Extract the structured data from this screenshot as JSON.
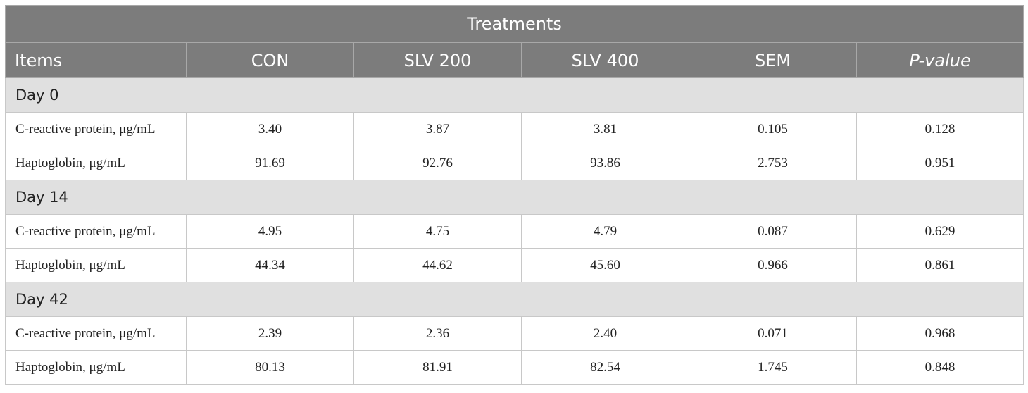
{
  "table": {
    "group_header": "Treatments",
    "columns": [
      "Items",
      "CON",
      "SLV 200",
      "SLV 400",
      "SEM",
      "P-value"
    ],
    "sections": [
      {
        "label": "Day 0",
        "rows": [
          [
            "C-reactive protein, μg/mL",
            "3.40",
            "3.87",
            "3.81",
            "0.105",
            "0.128"
          ],
          [
            "Haptoglobin, μg/mL",
            "91.69",
            "92.76",
            "93.86",
            "2.753",
            "0.951"
          ]
        ]
      },
      {
        "label": "Day 14",
        "rows": [
          [
            "C-reactive protein, μg/mL",
            "4.95",
            "4.75",
            "4.79",
            "0.087",
            "0.629"
          ],
          [
            "Haptoglobin, μg/mL",
            "44.34",
            "44.62",
            "45.60",
            "0.966",
            "0.861"
          ]
        ]
      },
      {
        "label": "Day 42",
        "rows": [
          [
            "C-reactive protein, μg/mL",
            "2.39",
            "2.36",
            "2.40",
            "0.071",
            "0.968"
          ],
          [
            "Haptoglobin, μg/mL",
            "80.13",
            "81.91",
            "82.54",
            "1.745",
            "0.848"
          ]
        ]
      }
    ]
  }
}
